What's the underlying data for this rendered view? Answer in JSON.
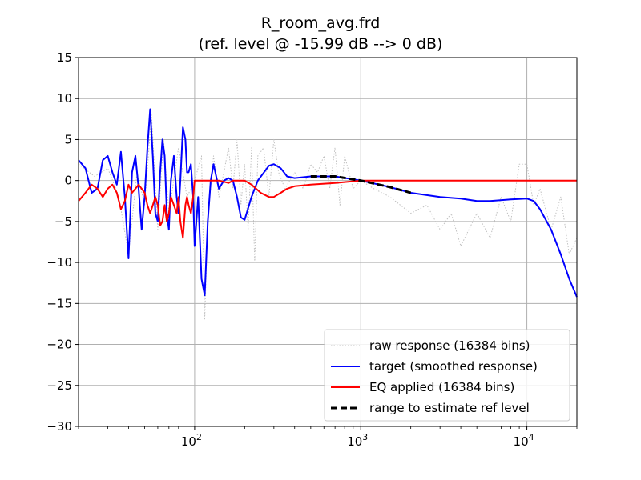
{
  "chart_data": {
    "type": "line",
    "title": "R_room_avg.frd",
    "subtitle": "(ref. level @ -15.99 dB --> 0 dB)",
    "xscale": "log",
    "xlim": [
      20,
      20000
    ],
    "ylim": [
      -30,
      15
    ],
    "y_ticks": [
      15,
      10,
      5,
      0,
      -5,
      -10,
      -15,
      -20,
      -25,
      -30
    ],
    "y_tick_labels": [
      "15",
      "10",
      "5",
      "0",
      "−5",
      "−10",
      "−15",
      "−20",
      "−25",
      "−30"
    ],
    "x_ticks": [
      {
        "value": 100,
        "base": "10",
        "exp": "2"
      },
      {
        "value": 1000,
        "base": "10",
        "exp": "3"
      },
      {
        "value": 10000,
        "base": "10",
        "exp": "4"
      }
    ],
    "grid": true,
    "legend_position": "lower-right",
    "series": [
      {
        "name": "raw response (16384 bins)",
        "color": "#c0c0c0",
        "style": "dotted",
        "points": [
          [
            20,
            2.0
          ],
          [
            25,
            0.5
          ],
          [
            30,
            1.5
          ],
          [
            35,
            -2
          ],
          [
            40,
            -9
          ],
          [
            45,
            1
          ],
          [
            50,
            -3
          ],
          [
            55,
            8
          ],
          [
            60,
            -6
          ],
          [
            65,
            5
          ],
          [
            70,
            -4
          ],
          [
            80,
            4
          ],
          [
            90,
            -2
          ],
          [
            100,
            0
          ],
          [
            110,
            3
          ],
          [
            115,
            -17
          ],
          [
            120,
            -5
          ],
          [
            130,
            3
          ],
          [
            140,
            -2
          ],
          [
            150,
            1
          ],
          [
            160,
            4
          ],
          [
            170,
            -1
          ],
          [
            180,
            5
          ],
          [
            190,
            -3
          ],
          [
            200,
            2
          ],
          [
            210,
            -6
          ],
          [
            220,
            4
          ],
          [
            230,
            -10
          ],
          [
            240,
            3
          ],
          [
            260,
            4
          ],
          [
            280,
            -2
          ],
          [
            300,
            5
          ],
          [
            320,
            1
          ],
          [
            350,
            -1
          ],
          [
            400,
            1
          ],
          [
            450,
            -1
          ],
          [
            500,
            2
          ],
          [
            550,
            1
          ],
          [
            600,
            3
          ],
          [
            650,
            -1
          ],
          [
            700,
            4
          ],
          [
            750,
            -3
          ],
          [
            800,
            3
          ],
          [
            900,
            -1
          ],
          [
            1000,
            0
          ],
          [
            1200,
            -1
          ],
          [
            1500,
            -2
          ],
          [
            2000,
            -4
          ],
          [
            2500,
            -3
          ],
          [
            3000,
            -6
          ],
          [
            3500,
            -4
          ],
          [
            4000,
            -8
          ],
          [
            5000,
            -4
          ],
          [
            6000,
            -7
          ],
          [
            7000,
            -2
          ],
          [
            8000,
            -5
          ],
          [
            9000,
            2
          ],
          [
            10000,
            2
          ],
          [
            11000,
            -3
          ],
          [
            12000,
            -1
          ],
          [
            14000,
            -6
          ],
          [
            16000,
            -2
          ],
          [
            18000,
            -9
          ],
          [
            20000,
            -7
          ]
        ]
      },
      {
        "name": "target (smoothed response)",
        "color": "#0000ff",
        "style": "solid",
        "points": [
          [
            20,
            2.5
          ],
          [
            22,
            1.5
          ],
          [
            24,
            -1.5
          ],
          [
            26,
            -1
          ],
          [
            28,
            2.5
          ],
          [
            30,
            3
          ],
          [
            32,
            1
          ],
          [
            34,
            -0.5
          ],
          [
            36,
            3.5
          ],
          [
            38,
            -2
          ],
          [
            40,
            -9.5
          ],
          [
            42,
            1
          ],
          [
            44,
            3
          ],
          [
            46,
            -1
          ],
          [
            48,
            -6
          ],
          [
            50,
            -2
          ],
          [
            52,
            4
          ],
          [
            54,
            8.7
          ],
          [
            56,
            3
          ],
          [
            58,
            -4
          ],
          [
            60,
            -5
          ],
          [
            62,
            1
          ],
          [
            64,
            5
          ],
          [
            66,
            3
          ],
          [
            68,
            -4
          ],
          [
            70,
            -6
          ],
          [
            72,
            0
          ],
          [
            75,
            3
          ],
          [
            78,
            -2
          ],
          [
            80,
            -4
          ],
          [
            82,
            0
          ],
          [
            85,
            6.5
          ],
          [
            88,
            5
          ],
          [
            90,
            1
          ],
          [
            92,
            1
          ],
          [
            95,
            2
          ],
          [
            98,
            -2
          ],
          [
            100,
            -8
          ],
          [
            105,
            -2
          ],
          [
            110,
            -12
          ],
          [
            115,
            -14
          ],
          [
            120,
            -5
          ],
          [
            125,
            0
          ],
          [
            130,
            2
          ],
          [
            140,
            -1
          ],
          [
            150,
            0
          ],
          [
            160,
            0.3
          ],
          [
            170,
            0
          ],
          [
            180,
            -2
          ],
          [
            190,
            -4.5
          ],
          [
            200,
            -4.8
          ],
          [
            220,
            -2
          ],
          [
            240,
            0
          ],
          [
            280,
            1.8
          ],
          [
            300,
            2
          ],
          [
            330,
            1.5
          ],
          [
            360,
            0.5
          ],
          [
            400,
            0.3
          ],
          [
            500,
            0.5
          ],
          [
            700,
            0.5
          ],
          [
            1000,
            0
          ],
          [
            1500,
            -0.8
          ],
          [
            2000,
            -1.5
          ],
          [
            3000,
            -2
          ],
          [
            4000,
            -2.2
          ],
          [
            5000,
            -2.5
          ],
          [
            6000,
            -2.5
          ],
          [
            8000,
            -2.3
          ],
          [
            10000,
            -2.2
          ],
          [
            11000,
            -2.5
          ],
          [
            12000,
            -3.5
          ],
          [
            14000,
            -6
          ],
          [
            16000,
            -9
          ],
          [
            18000,
            -12
          ],
          [
            20000,
            -14.2
          ]
        ]
      },
      {
        "name": "EQ applied (16384 bins)",
        "color": "#ff0000",
        "style": "solid",
        "points": [
          [
            20,
            -2.5
          ],
          [
            22,
            -1.5
          ],
          [
            24,
            -0.5
          ],
          [
            26,
            -1
          ],
          [
            28,
            -2
          ],
          [
            30,
            -1
          ],
          [
            32,
            -0.5
          ],
          [
            34,
            -1.5
          ],
          [
            36,
            -3.5
          ],
          [
            38,
            -2.5
          ],
          [
            40,
            -0.5
          ],
          [
            42,
            -1.5
          ],
          [
            44,
            -1
          ],
          [
            46,
            -0.5
          ],
          [
            48,
            -1
          ],
          [
            50,
            -1.5
          ],
          [
            52,
            -3
          ],
          [
            54,
            -4
          ],
          [
            56,
            -3
          ],
          [
            58,
            -2
          ],
          [
            60,
            -3
          ],
          [
            62,
            -5.5
          ],
          [
            64,
            -5
          ],
          [
            66,
            -3
          ],
          [
            68,
            -5
          ],
          [
            70,
            -4
          ],
          [
            72,
            -2
          ],
          [
            75,
            -3
          ],
          [
            78,
            -4
          ],
          [
            80,
            -2
          ],
          [
            82,
            -5
          ],
          [
            85,
            -7
          ],
          [
            88,
            -3
          ],
          [
            90,
            -2
          ],
          [
            92,
            -3
          ],
          [
            95,
            -4
          ],
          [
            98,
            -2
          ],
          [
            100,
            0
          ],
          [
            120,
            0
          ],
          [
            140,
            0
          ],
          [
            160,
            -0.3
          ],
          [
            170,
            0
          ],
          [
            200,
            0
          ],
          [
            220,
            -0.5
          ],
          [
            250,
            -1.5
          ],
          [
            280,
            -2
          ],
          [
            300,
            -2
          ],
          [
            330,
            -1.5
          ],
          [
            360,
            -1
          ],
          [
            400,
            -0.7
          ],
          [
            500,
            -0.5
          ],
          [
            700,
            -0.3
          ],
          [
            1000,
            0
          ],
          [
            20000,
            0
          ]
        ]
      },
      {
        "name": "range to estimate ref level",
        "color": "#000000",
        "style": "dashed",
        "points": [
          [
            500,
            0.5
          ],
          [
            700,
            0.5
          ],
          [
            1000,
            0
          ],
          [
            1500,
            -0.8
          ],
          [
            2000,
            -1.5
          ]
        ]
      }
    ]
  }
}
